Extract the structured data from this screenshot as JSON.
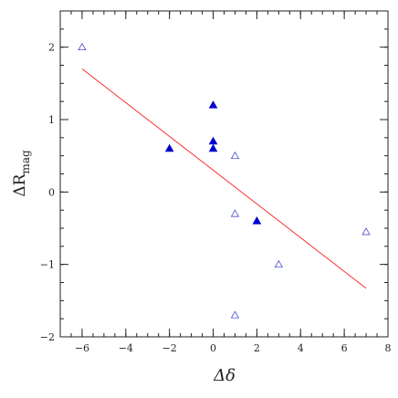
{
  "chart_data": {
    "type": "scatter",
    "title": "",
    "xlabel": "Δδ",
    "ylabel_main": "ΔR",
    "ylabel_sub": "mag",
    "xlim": [
      -7,
      8
    ],
    "ylim": [
      -2,
      2.5
    ],
    "xticks": [
      -6,
      -4,
      -2,
      0,
      2,
      4,
      6,
      8
    ],
    "yticks": [
      -2,
      -1,
      0,
      1,
      2
    ],
    "x_minor_step": 0.5,
    "y_minor_step": 0.25,
    "grid": false,
    "series": [
      {
        "marker": "triangle-filled",
        "color": "#0000cc",
        "points": [
          {
            "x": -2,
            "y": 0.6
          },
          {
            "x": 0,
            "y": 1.2
          },
          {
            "x": 0,
            "y": 0.7
          },
          {
            "x": 0,
            "y": 0.6
          },
          {
            "x": 2,
            "y": -0.4
          }
        ]
      },
      {
        "marker": "triangle-open",
        "color": "#3333cc",
        "points": [
          {
            "x": -6,
            "y": 2.0
          },
          {
            "x": 1,
            "y": 0.5
          },
          {
            "x": 1,
            "y": -0.3
          },
          {
            "x": 1,
            "y": -1.7
          },
          {
            "x": 3,
            "y": -1.0
          },
          {
            "x": 7,
            "y": -0.55
          }
        ]
      }
    ],
    "fit_line": {
      "color": "#ff0000",
      "x1": -6,
      "y1": 1.7,
      "x2": 7,
      "y2": -1.33
    }
  }
}
